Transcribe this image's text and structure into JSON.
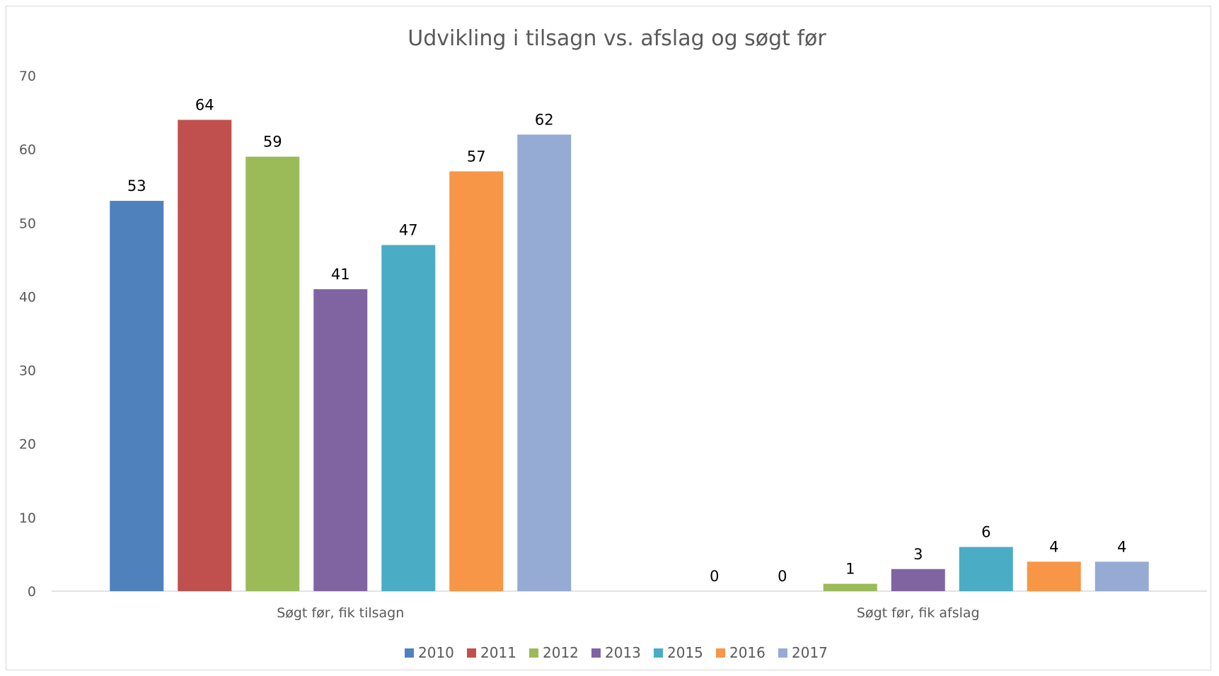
{
  "chart_data": {
    "type": "bar",
    "title": "Udvikling i tilsagn vs. afslag og søgt før",
    "xlabel": "",
    "ylabel": "",
    "categories": [
      "Søgt før, fik tilsagn",
      "Søgt før, fik afslag"
    ],
    "yticks": [
      "0",
      "10",
      "20",
      "30",
      "40",
      "50",
      "60",
      "70"
    ],
    "ylim": [
      0,
      70
    ],
    "grid": false,
    "legend_position": "bottom",
    "data_labels": true,
    "series": [
      {
        "name": "2010",
        "color": "#4f81bd",
        "values": [
          53,
          0
        ]
      },
      {
        "name": "2011",
        "color": "#c0504d",
        "values": [
          64,
          0
        ]
      },
      {
        "name": "2012",
        "color": "#9bbb59",
        "values": [
          59,
          1
        ]
      },
      {
        "name": "2013",
        "color": "#8064a2",
        "values": [
          41,
          3
        ]
      },
      {
        "name": "2015",
        "color": "#4bacc6",
        "values": [
          47,
          6
        ]
      },
      {
        "name": "2016",
        "color": "#f79646",
        "values": [
          57,
          4
        ]
      },
      {
        "name": "2017",
        "color": "#95abd3",
        "values": [
          62,
          4
        ]
      }
    ]
  }
}
